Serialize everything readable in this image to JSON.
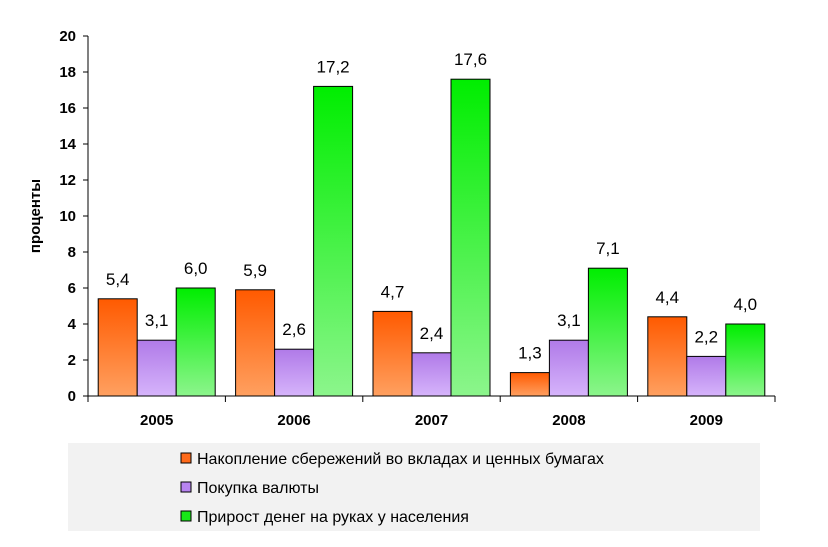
{
  "chart_data": {
    "type": "bar",
    "title": "",
    "xlabel": "",
    "ylabel": "проценты",
    "ylim": [
      0,
      20
    ],
    "yticks": [
      "0",
      "2",
      "4",
      "6",
      "8",
      "10",
      "12",
      "14",
      "16",
      "18",
      "20"
    ],
    "categories": [
      "2005",
      "2006",
      "2007",
      "2008",
      "2009"
    ],
    "series": [
      {
        "name": "Накопление сбережений во вкладах и ценных бумагах",
        "color": "#ff6a1a",
        "values": [
          5.4,
          5.9,
          4.7,
          1.3,
          4.4
        ],
        "labels": [
          "5,4",
          "5,9",
          "4,7",
          "1,3",
          "4,4"
        ]
      },
      {
        "name": "Покупка валюты",
        "color": "#b784f0",
        "values": [
          3.1,
          2.6,
          2.4,
          3.1,
          2.2
        ],
        "labels": [
          "3,1",
          "2,6",
          "2,4",
          "3,1",
          "2,2"
        ]
      },
      {
        "name": "Прирост денег на руках у населения",
        "color": "#18e818",
        "values": [
          6.0,
          17.2,
          17.6,
          7.1,
          4.0
        ],
        "labels": [
          "6,0",
          "17,2",
          "17,6",
          "7,1",
          "4,0"
        ]
      }
    ],
    "grid": false,
    "legend_position": "bottom"
  }
}
